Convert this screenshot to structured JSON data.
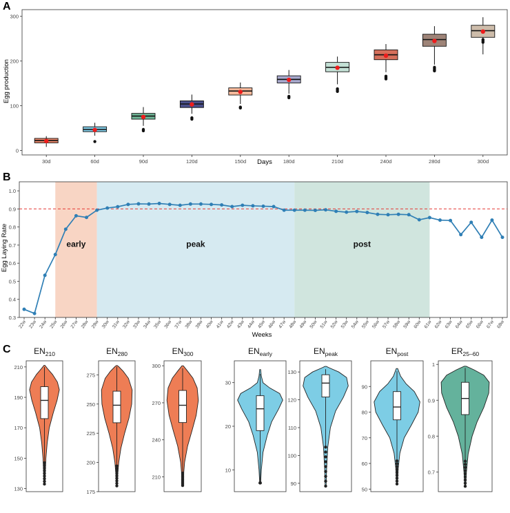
{
  "chart_data": [
    {
      "panel": "A",
      "type": "boxplot",
      "xlabel": "Days",
      "ylabel": "Egg production",
      "ylim": [
        -10,
        315
      ],
      "yticks": [
        0,
        100,
        200,
        300
      ],
      "categories": [
        "30d",
        "60d",
        "90d",
        "120d",
        "150d",
        "180d",
        "210d",
        "240d",
        "280d",
        "300d"
      ],
      "boxes": [
        {
          "q1": 17,
          "median": 22,
          "q3": 27,
          "wlo": 8,
          "whi": 32,
          "mean": 21,
          "outliers": []
        },
        {
          "q1": 42,
          "median": 47,
          "q3": 53,
          "wlo": 33,
          "whi": 62,
          "mean": 46,
          "outliers": [
            20
          ]
        },
        {
          "q1": 70,
          "median": 77,
          "q3": 83,
          "wlo": 55,
          "whi": 97,
          "mean": 75,
          "outliers": [
            44,
            47
          ]
        },
        {
          "q1": 96,
          "median": 104,
          "q3": 111,
          "wlo": 82,
          "whi": 125,
          "mean": 103,
          "outliers": [
            70,
            73
          ]
        },
        {
          "q1": 124,
          "median": 133,
          "q3": 140,
          "wlo": 104,
          "whi": 152,
          "mean": 131,
          "outliers": [
            95,
            97
          ]
        },
        {
          "q1": 151,
          "median": 159,
          "q3": 167,
          "wlo": 127,
          "whi": 180,
          "mean": 158,
          "outliers": [
            118,
            121
          ]
        },
        {
          "q1": 176,
          "median": 186,
          "q3": 197,
          "wlo": 148,
          "whi": 210,
          "mean": 185,
          "outliers": [
            132,
            135,
            138
          ]
        },
        {
          "q1": 203,
          "median": 214,
          "q3": 225,
          "wlo": 175,
          "whi": 238,
          "mean": 212,
          "outliers": [
            160,
            163,
            166
          ]
        },
        {
          "q1": 233,
          "median": 248,
          "q3": 260,
          "wlo": 192,
          "whi": 278,
          "mean": 245,
          "outliers": [
            178,
            180,
            183,
            186
          ]
        },
        {
          "q1": 253,
          "median": 268,
          "q3": 280,
          "wlo": 215,
          "whi": 298,
          "mean": 266,
          "outliers": [
            242,
            245,
            248
          ]
        }
      ],
      "colors": [
        "#e8866a",
        "#7ec8e3",
        "#6fb596",
        "#4a4f8a",
        "#f4b89a",
        "#a7a8cc",
        "#c3e0d5",
        "#d56f5b",
        "#9e8478",
        "#cdbcaa"
      ]
    },
    {
      "panel": "B",
      "type": "line",
      "xlabel": "Weeks",
      "ylabel": "Egg Laying Rate",
      "ylim": [
        0.3,
        1.05
      ],
      "yticks": [
        0.3,
        0.4,
        0.5,
        0.6,
        0.7,
        0.8,
        0.9,
        1.0
      ],
      "reference_line": 0.9,
      "categories": [
        "22w",
        "23w",
        "24w",
        "25w",
        "26w",
        "27w",
        "28w",
        "29w",
        "30w",
        "31w",
        "32w",
        "33w",
        "34w",
        "35w",
        "36w",
        "37w",
        "38w",
        "39w",
        "40w",
        "41w",
        "42w",
        "43w",
        "44w",
        "45w",
        "46w",
        "47w",
        "48w",
        "49w",
        "50w",
        "51w",
        "52w",
        "53w",
        "54w",
        "55w",
        "56w",
        "57w",
        "58w",
        "59w",
        "60w",
        "61w",
        "62w",
        "63w",
        "64w",
        "65w",
        "66w",
        "67w",
        "68w"
      ],
      "values": [
        0.345,
        0.322,
        0.533,
        0.648,
        0.788,
        0.862,
        0.853,
        0.893,
        0.905,
        0.912,
        0.925,
        0.928,
        0.927,
        0.93,
        0.925,
        0.92,
        0.927,
        0.927,
        0.925,
        0.922,
        0.913,
        0.92,
        0.917,
        0.915,
        0.913,
        0.893,
        0.893,
        0.893,
        0.892,
        0.895,
        0.887,
        0.882,
        0.886,
        0.88,
        0.87,
        0.868,
        0.87,
        0.868,
        0.84,
        0.852,
        0.838,
        0.836,
        0.758,
        0.826,
        0.743,
        0.838,
        0.743
      ],
      "regions": [
        {
          "label": "early",
          "from": "25w",
          "to": "29w",
          "color": "#f8d5c4"
        },
        {
          "label": "peak",
          "from": "29w",
          "to": "48w",
          "color": "#d6eaf1"
        },
        {
          "label": "post",
          "from": "48w",
          "to": "61w",
          "color": "#d0e5de"
        }
      ]
    },
    {
      "panel": "C",
      "type": "violin",
      "plots": [
        {
          "base": "EN",
          "sub": "210",
          "yticks": [
            130,
            150,
            170,
            190,
            210
          ],
          "ylim": [
            128,
            214
          ],
          "min": 133,
          "max": 211,
          "q1": 176,
          "median": 188,
          "q3": 197,
          "wlo": 147,
          "whi": 210,
          "color": "#ee7d55",
          "profile": [
            [
              133,
              0.03
            ],
            [
              140,
              0.05
            ],
            [
              150,
              0.09
            ],
            [
              160,
              0.17
            ],
            [
              170,
              0.3
            ],
            [
              180,
              0.55
            ],
            [
              188,
              0.78
            ],
            [
              195,
              0.92
            ],
            [
              200,
              0.8
            ],
            [
              205,
              0.5
            ],
            [
              209,
              0.18
            ],
            [
              211,
              0.03
            ]
          ]
        },
        {
          "base": "EN",
          "sub": "280",
          "yticks": [
            175,
            200,
            225,
            250,
            275
          ],
          "ylim": [
            175,
            287
          ],
          "min": 180,
          "max": 283,
          "q1": 234,
          "median": 249,
          "q3": 261,
          "wlo": 197,
          "whi": 282,
          "color": "#ee7d55",
          "profile": [
            [
              180,
              0.03
            ],
            [
              190,
              0.06
            ],
            [
              200,
              0.12
            ],
            [
              212,
              0.25
            ],
            [
              225,
              0.48
            ],
            [
              238,
              0.75
            ],
            [
              250,
              0.92
            ],
            [
              262,
              0.95
            ],
            [
              272,
              0.72
            ],
            [
              278,
              0.4
            ],
            [
              282,
              0.12
            ],
            [
              283,
              0.03
            ]
          ]
        },
        {
          "base": "EN",
          "sub": "300",
          "yticks": [
            210,
            240,
            270,
            300
          ],
          "ylim": [
            198,
            304
          ],
          "min": 203,
          "max": 300,
          "q1": 254,
          "median": 268,
          "q3": 280,
          "wlo": 213,
          "whi": 298,
          "color": "#ee7d55",
          "profile": [
            [
              203,
              0.03
            ],
            [
              212,
              0.06
            ],
            [
              222,
              0.12
            ],
            [
              235,
              0.3
            ],
            [
              248,
              0.58
            ],
            [
              260,
              0.82
            ],
            [
              272,
              0.95
            ],
            [
              282,
              0.88
            ],
            [
              290,
              0.62
            ],
            [
              296,
              0.28
            ],
            [
              300,
              0.04
            ]
          ]
        },
        {
          "base": "EN",
          "sub": "early",
          "yticks": [
            10,
            20,
            30
          ],
          "ylim": [
            5,
            35
          ],
          "min": 7,
          "max": 33,
          "q1": 19,
          "median": 24,
          "q3": 27,
          "wlo": 7,
          "whi": 32,
          "color": "#7dcde5",
          "profile": [
            [
              7,
              0.02
            ],
            [
              10,
              0.05
            ],
            [
              14,
              0.12
            ],
            [
              18,
              0.3
            ],
            [
              21,
              0.48
            ],
            [
              24,
              0.78
            ],
            [
              26,
              0.95
            ],
            [
              27.5,
              0.82
            ],
            [
              28.8,
              0.4
            ],
            [
              30,
              0.12
            ],
            [
              31.5,
              0.05
            ],
            [
              33,
              0.02
            ]
          ]
        },
        {
          "base": "EN",
          "sub": "peak",
          "yticks": [
            90,
            100,
            110,
            120,
            130
          ],
          "ylim": [
            87,
            134
          ],
          "min": 89,
          "max": 132,
          "q1": 121,
          "median": 126,
          "q3": 129,
          "wlo": 103,
          "whi": 131,
          "color": "#7dcde5",
          "profile": [
            [
              89,
              0.02
            ],
            [
              95,
              0.04
            ],
            [
              103,
              0.09
            ],
            [
              110,
              0.2
            ],
            [
              116,
              0.42
            ],
            [
              121,
              0.75
            ],
            [
              125,
              0.95
            ],
            [
              128,
              0.88
            ],
            [
              130,
              0.55
            ],
            [
              131.5,
              0.15
            ],
            [
              132,
              0.03
            ]
          ]
        },
        {
          "base": "EN",
          "sub": "post",
          "yticks": [
            50,
            60,
            70,
            80,
            90
          ],
          "ylim": [
            49,
            100
          ],
          "min": 52,
          "max": 97,
          "q1": 77,
          "median": 82,
          "q3": 88,
          "wlo": 61,
          "whi": 96,
          "color": "#7dcde5",
          "profile": [
            [
              52,
              0.02
            ],
            [
              58,
              0.05
            ],
            [
              64,
              0.12
            ],
            [
              70,
              0.3
            ],
            [
              75,
              0.6
            ],
            [
              80,
              0.88
            ],
            [
              84,
              0.95
            ],
            [
              88,
              0.72
            ],
            [
              91,
              0.38
            ],
            [
              94,
              0.15
            ],
            [
              97,
              0.03
            ]
          ]
        },
        {
          "base": "ER",
          "sub": "25–60",
          "yticks": [
            0.7,
            0.8,
            0.9,
            1.0
          ],
          "ylim": [
            0.645,
            1.01
          ],
          "min": 0.66,
          "max": 0.995,
          "q1": 0.86,
          "median": 0.905,
          "q3": 0.95,
          "wlo": 0.73,
          "whi": 0.99,
          "color": "#64b29c",
          "profile": [
            [
              0.66,
              0.02
            ],
            [
              0.7,
              0.05
            ],
            [
              0.75,
              0.12
            ],
            [
              0.8,
              0.28
            ],
            [
              0.84,
              0.48
            ],
            [
              0.88,
              0.75
            ],
            [
              0.92,
              0.95
            ],
            [
              0.95,
              0.97
            ],
            [
              0.97,
              0.75
            ],
            [
              0.985,
              0.35
            ],
            [
              0.995,
              0.04
            ]
          ]
        }
      ]
    }
  ]
}
